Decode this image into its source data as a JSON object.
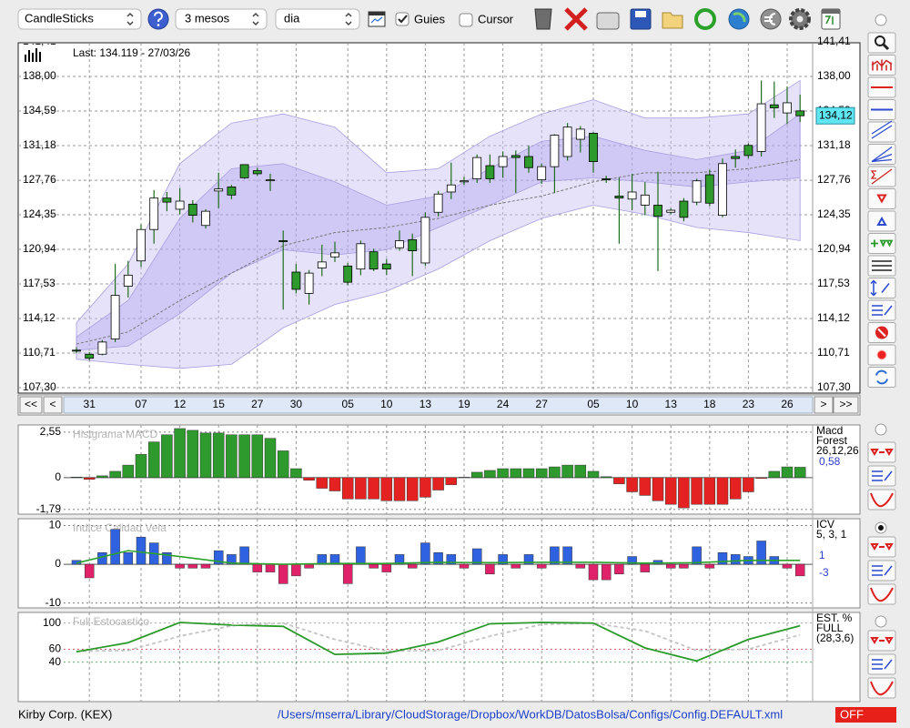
{
  "toolbar": {
    "chart_type": "CandleSticks",
    "period": "3 mesos",
    "interval": "dia",
    "guides": {
      "label": "Guies",
      "checked": true
    },
    "cursor": {
      "label": "Cursor",
      "checked": false
    }
  },
  "price_chart": {
    "type": "candlestick",
    "title": "Last: 134.119 - 27/03/26",
    "last_label": "134,12",
    "grid": true,
    "colors": {
      "up": "#ffffff",
      "down": "#2e9a2e",
      "wick": "#1f6e1f",
      "outline": "#000000"
    },
    "categories": [
      null,
      "31",
      null,
      null,
      null,
      "07",
      null,
      null,
      "12",
      null,
      null,
      "15",
      null,
      null,
      "27",
      null,
      null,
      "30",
      null,
      null,
      null,
      "05",
      null,
      null,
      "10",
      null,
      null,
      "13",
      null,
      null,
      "19",
      null,
      null,
      "24",
      null,
      null,
      "27",
      null,
      null,
      null,
      "05",
      null,
      null,
      "10",
      null,
      null,
      "13",
      null,
      null,
      "18",
      null,
      null,
      "23",
      null,
      null,
      "26",
      null
    ],
    "open": [
      111.0,
      110.6,
      110.6,
      112.1,
      117.3,
      119.8,
      122.9,
      126.0,
      124.9,
      125.4,
      123.3,
      126.7,
      127.1,
      129.3,
      128.7,
      127.8,
      121.8,
      118.7,
      116.6,
      119.1,
      120.2,
      119.3,
      119.0,
      120.7,
      119.5,
      121.1,
      121.9,
      119.6,
      124.6,
      126.6,
      127.6,
      127.9,
      129.2,
      129.1,
      130.2,
      130.1,
      127.8,
      129.1,
      130.1,
      131.8,
      132.4,
      127.9,
      126.2,
      125.9,
      125.3,
      125.3,
      124.6,
      125.7,
      125.6,
      128.3,
      124.3,
      130.1,
      131.2,
      130.6,
      135.2,
      134.4,
      134.6
    ],
    "high": [
      111.3,
      110.8,
      112.0,
      119.5,
      119.8,
      123.4,
      126.8,
      126.6,
      127.0,
      125.8,
      124.9,
      128.5,
      127.3,
      129.3,
      129.0,
      128.4,
      122.8,
      119.5,
      118.9,
      121.4,
      121.7,
      119.6,
      121.8,
      121.0,
      120.0,
      122.8,
      122.5,
      124.6,
      126.7,
      129.5,
      128.1,
      130.3,
      130.3,
      130.6,
      130.7,
      131.2,
      129.4,
      132.3,
      133.4,
      133.1,
      132.5,
      128.2,
      128.0,
      128.4,
      127.6,
      128.6,
      125.0,
      126.0,
      127.9,
      128.8,
      129.9,
      130.8,
      131.4,
      137.6,
      137.5,
      137.0,
      136.2
    ],
    "low": [
      110.7,
      110.0,
      110.5,
      111.8,
      116.2,
      119.2,
      121.5,
      124.7,
      124.4,
      123.6,
      123.0,
      125.0,
      125.9,
      127.9,
      128.2,
      126.7,
      115.0,
      116.6,
      115.5,
      118.3,
      119.7,
      117.4,
      118.4,
      118.8,
      118.4,
      120.8,
      118.3,
      119.3,
      124.2,
      125.9,
      127.3,
      127.5,
      127.5,
      128.0,
      126.5,
      128.5,
      127.4,
      126.5,
      129.7,
      130.5,
      128.5,
      127.5,
      121.5,
      124.8,
      124.3,
      118.8,
      124.4,
      123.7,
      125.3,
      125.2,
      124.1,
      129.0,
      129.9,
      130.1,
      133.9,
      133.3,
      133.5
    ],
    "close": [
      110.9,
      110.2,
      111.8,
      116.4,
      118.4,
      122.9,
      126.0,
      125.6,
      125.7,
      124.3,
      124.7,
      126.9,
      126.3,
      128.0,
      128.4,
      127.8,
      121.7,
      117.0,
      118.6,
      119.7,
      120.6,
      117.7,
      121.5,
      119.0,
      119.0,
      121.8,
      120.8,
      124.1,
      126.4,
      127.3,
      127.7,
      130.0,
      127.9,
      130.1,
      130.0,
      129.0,
      129.1,
      132.2,
      133.0,
      132.8,
      129.6,
      127.8,
      126.0,
      126.6,
      126.3,
      124.2,
      124.8,
      124.1,
      127.7,
      125.5,
      129.4,
      129.9,
      130.2,
      135.3,
      134.9,
      135.4,
      134.12
    ],
    "ylim": [
      107.3,
      141.41
    ],
    "yticks": [
      {
        "value": 107.3,
        "label": "107,30"
      },
      {
        "value": 110.71,
        "label": "110,71"
      },
      {
        "value": 114.12,
        "label": "114,12"
      },
      {
        "value": 117.53,
        "label": "117,53"
      },
      {
        "value": 120.94,
        "label": "120,94"
      },
      {
        "value": 124.35,
        "label": "124,35"
      },
      {
        "value": 127.76,
        "label": "127,76"
      },
      {
        "value": 131.18,
        "label": "131,18"
      },
      {
        "value": 134.59,
        "label": "134,59"
      },
      {
        "value": 138.0,
        "label": "138,00"
      },
      {
        "value": 141.41,
        "label": "141,41"
      }
    ],
    "bands": {
      "x": [
        0,
        4,
        8,
        12,
        16,
        20,
        24,
        28,
        32,
        36,
        40,
        44,
        48,
        52,
        56
      ],
      "outer_upper": [
        113.7,
        119.5,
        129.4,
        133.4,
        134.3,
        133.0,
        128.5,
        128.9,
        132.1,
        134.3,
        135.7,
        133.9,
        133.9,
        134.3,
        137.6
      ],
      "outer_lower": [
        110.1,
        109.6,
        109.2,
        109.6,
        113.2,
        115.5,
        116.8,
        119.0,
        121.8,
        124.0,
        125.3,
        124.4,
        123.1,
        122.6,
        121.8
      ],
      "inner_upper": [
        112.3,
        115.9,
        124.0,
        128.9,
        129.4,
        127.6,
        125.3,
        126.2,
        128.9,
        131.6,
        132.1,
        130.7,
        129.8,
        130.7,
        134.3
      ],
      "inner_lower": [
        111.0,
        111.4,
        114.6,
        118.6,
        120.9,
        120.4,
        120.9,
        123.1,
        125.3,
        127.6,
        128.0,
        127.6,
        127.1,
        127.6,
        128.0
      ],
      "middle": [
        111.6,
        112.8,
        115.9,
        118.6,
        121.3,
        122.6,
        123.1,
        124.0,
        125.3,
        126.2,
        127.6,
        128.5,
        128.5,
        128.9,
        129.8
      ]
    }
  },
  "navigation": {
    "first": "<<",
    "previous": "<",
    "next": ">",
    "last": ">>"
  },
  "macd": {
    "type": "bar",
    "title": "Histgrama MACD",
    "labels": [
      "Macd",
      "Forest",
      "26,12,26"
    ],
    "current_label": "0,58",
    "colors": {
      "positive": "#2e9a2e",
      "negative": "#e52222"
    },
    "values": [
      0.03,
      -0.1,
      0.1,
      0.35,
      0.7,
      1.3,
      2.0,
      2.4,
      2.75,
      2.65,
      2.5,
      2.5,
      2.4,
      2.4,
      2.4,
      2.2,
      1.5,
      0.5,
      -0.15,
      -0.6,
      -0.75,
      -1.2,
      -1.2,
      -1.2,
      -1.3,
      -1.3,
      -1.3,
      -1.1,
      -0.7,
      -0.4,
      0.02,
      0.3,
      0.4,
      0.5,
      0.5,
      0.5,
      0.5,
      0.6,
      0.7,
      0.7,
      0.35,
      0.05,
      -0.35,
      -0.8,
      -1.0,
      -1.3,
      -1.5,
      -1.7,
      -1.5,
      -1.5,
      -1.5,
      -1.2,
      -0.8,
      -0.05,
      0.35,
      0.6,
      0.58
    ],
    "ylim": [
      -2.0,
      2.9
    ],
    "yticks": [
      {
        "value": 2.55,
        "label": "2,55"
      },
      0,
      {
        "value": -1.79,
        "label": "-1,79"
      }
    ]
  },
  "icv": {
    "type": "bar",
    "title": "Indice Calidad Vela",
    "labels": [
      "ICV",
      "5, 3, 1"
    ],
    "current_labels": [
      "1",
      "-3"
    ],
    "colors": {
      "positive": "#2f62e0",
      "negative": "#e0226a",
      "signal": "#2aa22a"
    },
    "values": [
      1,
      -3.5,
      3,
      9,
      3,
      7,
      5.5,
      3,
      -1,
      -1,
      -1,
      3.5,
      2.5,
      4.5,
      -2,
      -2,
      -5,
      -3,
      -1,
      2.5,
      2.5,
      -5,
      4.5,
      -1,
      -2,
      2.5,
      -1,
      5.5,
      3,
      2.5,
      -1,
      4,
      -2.5,
      2.5,
      -1,
      2.5,
      -1,
      4.5,
      4.5,
      -1,
      -4,
      -4,
      -2.5,
      2,
      -2,
      1,
      -1,
      -1,
      4.5,
      -1,
      3,
      2.5,
      2,
      6,
      2,
      -1,
      -3
    ],
    "signal_x": [
      0,
      4,
      8,
      12,
      16,
      20,
      24,
      28,
      32,
      36,
      40,
      44,
      48,
      52,
      56
    ],
    "signal": [
      0.3,
      3.5,
      2.0,
      0.3,
      0.0,
      0.2,
      0.2,
      0.5,
      0.4,
      0.5,
      0.5,
      0.3,
      0.4,
      1.0,
      1.0
    ],
    "ylim": [
      -11,
      11.5
    ],
    "yticks": [
      10,
      0,
      -10
    ]
  },
  "stochastic": {
    "type": "line",
    "title": "Full Estocastico",
    "labels": [
      "EST. %",
      "FULL",
      "(28,3,6)"
    ],
    "x": [
      0,
      4,
      8,
      12,
      16,
      20,
      24,
      28,
      32,
      36,
      40,
      44,
      48,
      52,
      56
    ],
    "k": {
      "color": "#2a9a2a",
      "values": [
        56,
        70,
        101,
        97,
        95,
        52,
        54,
        71,
        99,
        101,
        100,
        62,
        42,
        75,
        96
      ]
    },
    "d": {
      "color": "#c4c4c4",
      "values": [
        57,
        58,
        80,
        96,
        100,
        75,
        57,
        58,
        80,
        98,
        100,
        88,
        58,
        60,
        82
      ]
    },
    "ylim": [
      -19,
      115
    ],
    "yticks": [
      100,
      60,
      40
    ],
    "tick_colors": [
      "#888888",
      "#c03030",
      "#2a9a2a"
    ]
  },
  "status": {
    "instrument": "Kirby Corp. (KEX)",
    "config_path": "/Users/mserra/Library/CloudStorage/Dropbox/WorkDB/DatosBolsa/Configs/Config.DEFAULT.xml",
    "mode": "OFF"
  }
}
